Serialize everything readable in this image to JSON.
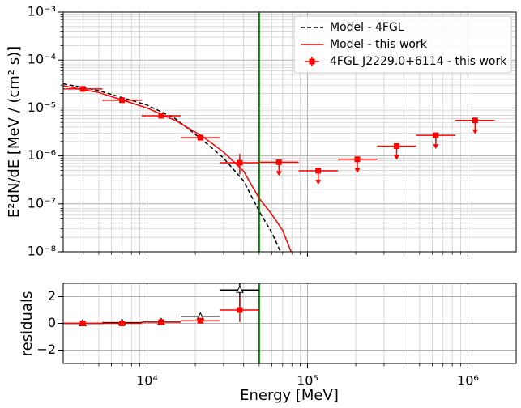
{
  "chart_data": [
    {
      "type": "sed",
      "ylabel": "E²dN/dE [MeV / (cm² s)]",
      "xscale": "log",
      "yscale": "log",
      "xlim": [
        3000,
        2000000
      ],
      "ylim": [
        1e-08,
        0.001
      ],
      "xticks": [
        10000,
        100000,
        1000000
      ],
      "xtick_labels": false,
      "yticks": [
        {
          "value": 1e-08,
          "label": "10⁻⁸"
        },
        {
          "value": 1e-07,
          "label": "10⁻⁷"
        },
        {
          "value": 1e-06,
          "label": "10⁻⁶"
        },
        {
          "value": 1e-05,
          "label": "10⁻⁵"
        },
        {
          "value": 0.0001,
          "label": "10⁻⁴"
        },
        {
          "value": 0.001,
          "label": "10⁻³"
        }
      ],
      "grid": true,
      "minor_grid": true,
      "vline": {
        "x": 50000,
        "color": "green"
      },
      "legend": "upper right",
      "models": [
        {
          "name": "Model - 4FGL",
          "color": "black",
          "dash": true,
          "x": [
            3000,
            5000,
            10000,
            15000,
            22000,
            30000,
            40000,
            50000,
            60000,
            70000
          ],
          "y": [
            3.2e-05,
            2.3e-05,
            1.15e-05,
            6e-06,
            2.2e-06,
            9e-07,
            3e-07,
            7e-08,
            2.5e-08,
            8e-09
          ]
        },
        {
          "name": "Model - this work",
          "color": "red",
          "dash": false,
          "x": [
            3000,
            5000,
            10000,
            15000,
            22000,
            30000,
            40000,
            50000,
            60000,
            70000,
            80000
          ],
          "y": [
            2.9e-05,
            2.1e-05,
            1e-05,
            5.5e-06,
            2.6e-06,
            1.2e-06,
            4.8e-07,
            1.3e-07,
            6e-08,
            2.8e-08,
            9e-09
          ]
        }
      ],
      "points": {
        "name": "4FGL J2229.0+6114 - this work",
        "color": "red",
        "x": [
          3970,
          6980,
          12250,
          21500,
          37840,
          66400,
          116700,
          204600,
          359700,
          631000,
          1109000
        ],
        "x_min": [
          3000,
          5270,
          9250,
          16250,
          28580,
          50120,
          88100,
          154500,
          271600,
          476400,
          837500
        ],
        "x_max": [
          5270,
          9250,
          16250,
          28580,
          50120,
          88100,
          154500,
          271600,
          476400,
          837500,
          1470000
        ],
        "values": [
          2.5e-05,
          1.45e-05,
          6.9e-06,
          2.4e-06,
          7.2e-07,
          7.4e-07,
          4.9e-07,
          8.5e-07,
          1.6e-06,
          2.7e-06,
          5.5e-06
        ],
        "y_low": [
          null,
          null,
          null,
          2.1e-06,
          4.1e-07,
          null,
          null,
          null,
          null,
          null,
          null
        ],
        "y_high": [
          null,
          null,
          null,
          2.8e-06,
          1.1e-06,
          null,
          null,
          null,
          null,
          null,
          null
        ],
        "upper_limit": [
          false,
          false,
          false,
          false,
          false,
          true,
          true,
          true,
          true,
          true,
          true
        ]
      }
    },
    {
      "type": "residuals",
      "xlabel": "Energy [MeV]",
      "ylabel": "residuals",
      "xscale": "log",
      "yscale": "linear",
      "xlim": [
        3000,
        2000000
      ],
      "ylim": [
        -3,
        3
      ],
      "xticks": [
        {
          "value": 10000,
          "label": "10⁴"
        },
        {
          "value": 100000,
          "label": "10⁵"
        },
        {
          "value": 1000000,
          "label": "10⁶"
        }
      ],
      "xtick_labels": true,
      "yticks": [
        {
          "value": -2,
          "label": "−2"
        },
        0,
        2
      ],
      "grid": true,
      "minor_grid": true,
      "vline": {
        "x": 50000,
        "color": "green"
      },
      "series": [
        {
          "color": "black",
          "marker": "triangle",
          "x": [
            3970,
            6980,
            12250,
            21500,
            37840
          ],
          "x_min": [
            3000,
            5270,
            9250,
            16250,
            28580
          ],
          "x_max": [
            5270,
            9250,
            16250,
            28580,
            50120
          ],
          "values": [
            0,
            0.05,
            0.1,
            0.5,
            2.5
          ],
          "y_low": [
            null,
            null,
            null,
            0.2,
            1.2
          ],
          "y_high": [
            null,
            null,
            null,
            0.8,
            3.5
          ]
        },
        {
          "color": "red",
          "marker": "square",
          "x": [
            3970,
            6980,
            12250,
            21500,
            37840
          ],
          "x_min": [
            3000,
            5270,
            9250,
            16250,
            28580
          ],
          "x_max": [
            5270,
            9250,
            16250,
            28580,
            50120
          ],
          "values": [
            0,
            0,
            0.1,
            0.2,
            1.0
          ],
          "y_low": [
            null,
            null,
            null,
            null,
            0.1
          ],
          "y_high": [
            null,
            null,
            null,
            null,
            2.0
          ]
        }
      ]
    }
  ]
}
